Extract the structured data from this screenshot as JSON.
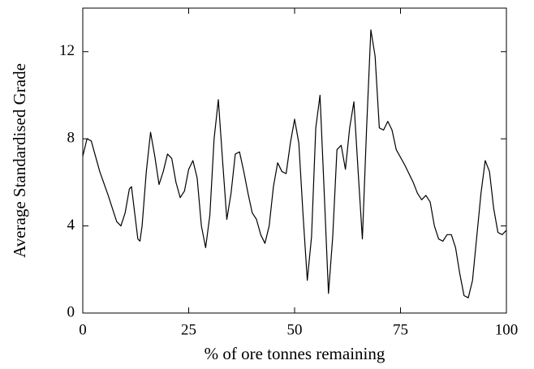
{
  "chart_data": {
    "type": "line",
    "xlabel": "% of ore tonnes remaining",
    "ylabel": "Average Standardised Grade",
    "x": [
      0,
      1,
      2,
      4,
      6,
      8,
      9,
      10,
      11,
      11.5,
      12,
      13,
      13.5,
      14,
      15,
      16,
      17,
      18,
      19,
      20,
      21,
      22,
      23,
      24,
      25,
      26,
      27,
      28,
      29,
      30,
      31,
      32,
      33,
      34,
      35,
      36,
      37,
      38,
      39,
      40,
      41,
      42,
      43,
      44,
      45,
      46,
      47,
      48,
      49,
      50,
      51,
      52,
      53,
      54,
      55,
      56,
      57,
      58,
      59,
      60,
      61,
      62,
      63,
      64,
      65,
      66,
      67,
      68,
      69,
      70,
      71,
      72,
      73,
      74,
      76,
      78,
      79,
      80,
      81,
      82,
      83,
      84,
      85,
      86,
      87,
      88,
      89,
      90,
      91,
      92,
      93,
      94,
      95,
      96,
      97,
      98,
      99,
      100
    ],
    "series": [
      {
        "color": "#000000",
        "values": [
          7.2,
          8.0,
          7.9,
          6.5,
          5.4,
          4.2,
          4.0,
          4.6,
          5.7,
          5.8,
          5.0,
          3.4,
          3.3,
          4.0,
          6.5,
          8.3,
          7.2,
          5.9,
          6.5,
          7.3,
          7.1,
          6.0,
          5.3,
          5.6,
          6.6,
          7.0,
          6.2,
          4.0,
          3.0,
          4.5,
          8.0,
          9.8,
          7.0,
          4.3,
          5.5,
          7.3,
          7.4,
          6.5,
          5.5,
          4.6,
          4.3,
          3.6,
          3.2,
          4.0,
          5.8,
          6.9,
          6.5,
          6.4,
          7.8,
          8.9,
          7.8,
          4.5,
          1.5,
          3.5,
          8.5,
          10.0,
          5.5,
          0.9,
          3.5,
          7.5,
          7.7,
          6.6,
          8.5,
          9.7,
          6.5,
          3.4,
          8.5,
          13.0,
          11.8,
          8.5,
          8.4,
          8.8,
          8.4,
          7.5,
          6.8,
          6.0,
          5.5,
          5.2,
          5.4,
          5.1,
          4.0,
          3.4,
          3.3,
          3.6,
          3.6,
          3.0,
          1.8,
          0.8,
          0.7,
          1.5,
          3.5,
          5.5,
          7.0,
          6.5,
          4.8,
          3.7,
          3.6,
          3.8
        ]
      }
    ],
    "xlim": [
      0,
      100
    ],
    "xticks": [
      0,
      25,
      50,
      75,
      100
    ],
    "ylim": [
      0,
      14
    ],
    "yticks": [
      0,
      4,
      8,
      12
    ]
  }
}
